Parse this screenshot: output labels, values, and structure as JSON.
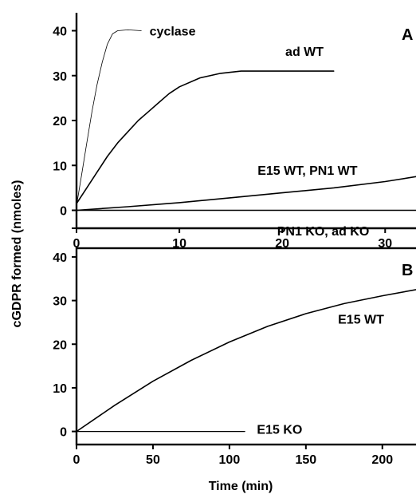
{
  "figure": {
    "ylabel": "cGDPR formed (nmoles)",
    "xlabel": "Time (min)"
  },
  "chart_data": [
    {
      "type": "line",
      "panel_label": "A",
      "xlim": [
        0,
        33
      ],
      "ylim": [
        -4,
        44
      ],
      "xticks": [
        0,
        10,
        20,
        30
      ],
      "yticks": [
        0,
        10,
        20,
        30,
        40
      ],
      "series": [
        {
          "name": "cyclase",
          "x": [
            0,
            0.5,
            1,
            1.5,
            2,
            2.5,
            3,
            3.5,
            4,
            5,
            6.3
          ],
          "y": [
            1,
            8,
            15,
            22,
            28,
            33,
            37,
            39.3,
            40,
            40.2,
            40
          ]
        },
        {
          "name": "ad WT",
          "x": [
            0,
            1,
            2,
            3,
            4,
            5,
            6,
            7,
            8,
            9,
            10,
            12,
            14,
            16,
            18,
            20,
            22,
            25
          ],
          "y": [
            1.5,
            5,
            8.5,
            12,
            15,
            17.5,
            20,
            22,
            24,
            26,
            27.5,
            29.5,
            30.5,
            31,
            31,
            31,
            31,
            31
          ]
        },
        {
          "name": "E15 WT, PN1 WT",
          "x": [
            0,
            5,
            10,
            15,
            20,
            25,
            30,
            33
          ],
          "y": [
            0,
            0.8,
            1.7,
            2.8,
            3.9,
            5,
            6.4,
            7.5
          ]
        },
        {
          "name": "PN1 KO, ad KO",
          "x": [
            0,
            10,
            20,
            30,
            33
          ],
          "y": [
            0,
            0,
            0,
            0,
            0
          ]
        }
      ],
      "labels": [
        {
          "text": "cyclase",
          "x": 7.1,
          "y": 40
        },
        {
          "text": "ad WT",
          "x": 20.3,
          "y": 35.5
        },
        {
          "text": "E15 WT, PN1 WT",
          "x": 17.6,
          "y": 9
        },
        {
          "text": "PN1 KO, ad KO",
          "x": 19.5,
          "y": -4.5
        }
      ]
    },
    {
      "type": "line",
      "panel_label": "B",
      "xlim": [
        0,
        222
      ],
      "ylim": [
        -3,
        42
      ],
      "xticks": [
        0,
        50,
        100,
        150,
        200
      ],
      "yticks": [
        0,
        10,
        20,
        30,
        40
      ],
      "series": [
        {
          "name": "E15 WT",
          "x": [
            0,
            25,
            50,
            75,
            100,
            125,
            150,
            175,
            200,
            222
          ],
          "y": [
            0,
            6,
            11.5,
            16.3,
            20.5,
            24.1,
            27,
            29.3,
            31.1,
            32.5
          ]
        },
        {
          "name": "E15 KO",
          "x": [
            0,
            50,
            110
          ],
          "y": [
            0,
            0,
            0
          ]
        }
      ],
      "labels": [
        {
          "text": "E15 WT",
          "x": 171,
          "y": 25.8
        },
        {
          "text": "E15 KO",
          "x": 118,
          "y": 0.6
        }
      ]
    }
  ]
}
